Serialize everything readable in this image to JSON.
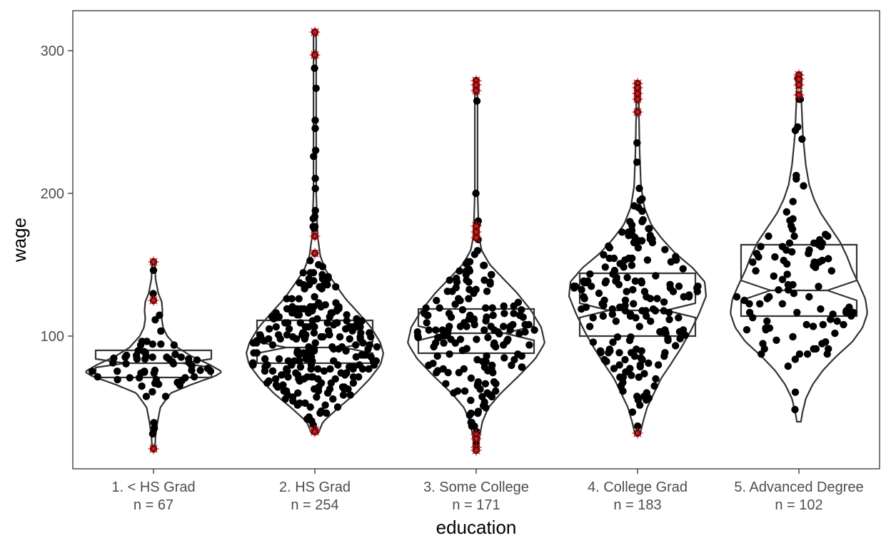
{
  "chart_data": {
    "type": "violin",
    "xlabel": "education",
    "ylabel": "wage",
    "ylim": [
      7,
      328
    ],
    "yticks": [
      100,
      200,
      300
    ],
    "grid": false,
    "colors": {
      "outline": "#333333",
      "points": "#000000",
      "outliers": "#e41a1c",
      "frame": "#333333"
    },
    "categories": [
      {
        "name": "1. < HS Grad",
        "n_label": "n =  67",
        "n": 67,
        "box": {
          "q1": 71,
          "lower_notch": 78,
          "median": 81,
          "upper_notch": 84,
          "q3": 90
        },
        "outliers": [
          152,
          125,
          21
        ],
        "density": [
          [
            21,
            0.02
          ],
          [
            30,
            0.03
          ],
          [
            40,
            0.06
          ],
          [
            50,
            0.1
          ],
          [
            60,
            0.25
          ],
          [
            66,
            0.55
          ],
          [
            72,
            0.9
          ],
          [
            75,
            1.0
          ],
          [
            80,
            0.82
          ],
          [
            86,
            0.55
          ],
          [
            92,
            0.35
          ],
          [
            100,
            0.2
          ],
          [
            106,
            0.14
          ],
          [
            112,
            0.12
          ],
          [
            118,
            0.13
          ],
          [
            124,
            0.12
          ],
          [
            130,
            0.07
          ],
          [
            140,
            0.03
          ],
          [
            152,
            0.02
          ]
        ]
      },
      {
        "name": "2. HS Grad",
        "n_label": "n =  254",
        "n": 254,
        "box": {
          "q1": 81,
          "lower_notch": 88,
          "median": 92,
          "upper_notch": 96,
          "q3": 111
        },
        "outliers": [
          313,
          297,
          170,
          158,
          34,
          33
        ],
        "density": [
          [
            32,
            0.05
          ],
          [
            40,
            0.12
          ],
          [
            50,
            0.35
          ],
          [
            60,
            0.6
          ],
          [
            70,
            0.8
          ],
          [
            80,
            0.96
          ],
          [
            88,
            1.0
          ],
          [
            96,
            0.95
          ],
          [
            106,
            0.82
          ],
          [
            116,
            0.64
          ],
          [
            126,
            0.45
          ],
          [
            136,
            0.3
          ],
          [
            146,
            0.16
          ],
          [
            156,
            0.08
          ],
          [
            170,
            0.04
          ],
          [
            200,
            0.02
          ],
          [
            250,
            0.02
          ],
          [
            300,
            0.02
          ],
          [
            313,
            0.02
          ]
        ]
      },
      {
        "name": "3. Some College",
        "n_label": "n =  171",
        "n": 171,
        "box": {
          "q1": 88,
          "lower_notch": 97,
          "median": 102,
          "upper_notch": 107,
          "q3": 119
        },
        "outliers": [
          279,
          276,
          272,
          177,
          173,
          169,
          31,
          28,
          22,
          20
        ],
        "density": [
          [
            20,
            0.03
          ],
          [
            30,
            0.05
          ],
          [
            40,
            0.09
          ],
          [
            50,
            0.18
          ],
          [
            60,
            0.36
          ],
          [
            72,
            0.62
          ],
          [
            84,
            0.86
          ],
          [
            95,
            1.0
          ],
          [
            106,
            0.95
          ],
          [
            118,
            0.8
          ],
          [
            130,
            0.6
          ],
          [
            140,
            0.4
          ],
          [
            150,
            0.2
          ],
          [
            160,
            0.08
          ],
          [
            170,
            0.04
          ],
          [
            200,
            0.02
          ],
          [
            250,
            0.02
          ],
          [
            279,
            0.02
          ]
        ]
      },
      {
        "name": "4. College Grad",
        "n_label": "n =  183",
        "n": 183,
        "box": {
          "q1": 100,
          "lower_notch": 113,
          "median": 118,
          "upper_notch": 123,
          "q3": 144
        },
        "outliers": [
          277,
          274,
          270,
          266,
          257,
          32
        ],
        "density": [
          [
            32,
            0.04
          ],
          [
            40,
            0.08
          ],
          [
            50,
            0.14
          ],
          [
            60,
            0.24
          ],
          [
            70,
            0.34
          ],
          [
            80,
            0.48
          ],
          [
            92,
            0.64
          ],
          [
            104,
            0.78
          ],
          [
            116,
            0.9
          ],
          [
            128,
            1.0
          ],
          [
            138,
            0.98
          ],
          [
            148,
            0.8
          ],
          [
            158,
            0.55
          ],
          [
            168,
            0.36
          ],
          [
            178,
            0.2
          ],
          [
            190,
            0.1
          ],
          [
            205,
            0.05
          ],
          [
            230,
            0.03
          ],
          [
            255,
            0.02
          ],
          [
            277,
            0.02
          ]
        ]
      },
      {
        "name": "5. Advanced Degree",
        "n_label": "n =  102",
        "n": 102,
        "box": {
          "q1": 114,
          "lower_notch": 125,
          "median": 132,
          "upper_notch": 139,
          "q3": 164
        },
        "outliers": [
          283,
          280,
          276,
          269
        ],
        "density": [
          [
            40,
            0.03
          ],
          [
            46,
            0.05
          ],
          [
            56,
            0.1
          ],
          [
            66,
            0.2
          ],
          [
            76,
            0.35
          ],
          [
            86,
            0.55
          ],
          [
            96,
            0.78
          ],
          [
            106,
            0.93
          ],
          [
            116,
            1.0
          ],
          [
            126,
            0.97
          ],
          [
            136,
            0.88
          ],
          [
            146,
            0.78
          ],
          [
            156,
            0.7
          ],
          [
            166,
            0.6
          ],
          [
            176,
            0.46
          ],
          [
            186,
            0.32
          ],
          [
            196,
            0.22
          ],
          [
            206,
            0.15
          ],
          [
            220,
            0.1
          ],
          [
            240,
            0.06
          ],
          [
            260,
            0.04
          ],
          [
            275,
            0.03
          ],
          [
            283,
            0.02
          ]
        ]
      }
    ]
  }
}
